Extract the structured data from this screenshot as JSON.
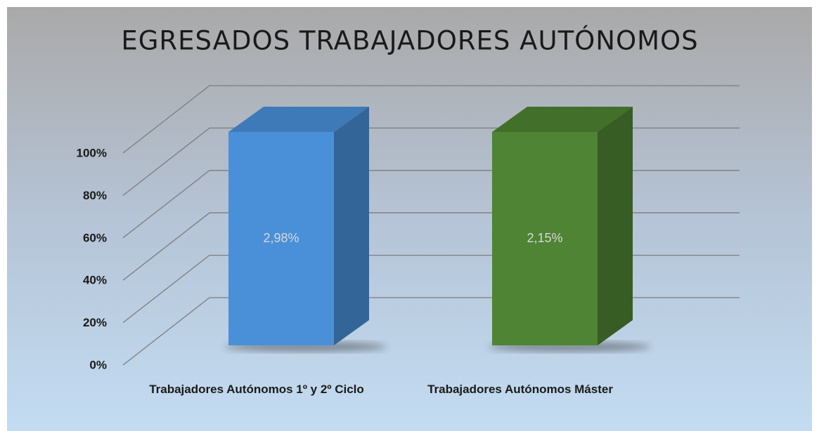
{
  "chart_data": {
    "type": "bar",
    "title": "EGRESADOS TRABAJADORES AUTÓNOMOS",
    "categories": [
      "Trabajadores Autónomos 1º y 2º Ciclo",
      "Trabajadores Autónomos Máster"
    ],
    "series": [
      {
        "name": "Trabajadores Autónomos",
        "values": [
          2.98,
          2.15
        ],
        "value_labels": [
          "2,98%",
          "2,15%"
        ],
        "colors": [
          "#4a90d9",
          "#4e8433"
        ]
      }
    ],
    "percent_stacked": true,
    "ylim": [
      0,
      100
    ],
    "yticks": [
      {
        "value": 0,
        "label": "0%"
      },
      {
        "value": 20,
        "label": "20%"
      },
      {
        "value": 40,
        "label": "40%"
      },
      {
        "value": 60,
        "label": "60%"
      },
      {
        "value": 80,
        "label": "80%"
      },
      {
        "value": 100,
        "label": "100%"
      }
    ],
    "grid": true
  }
}
